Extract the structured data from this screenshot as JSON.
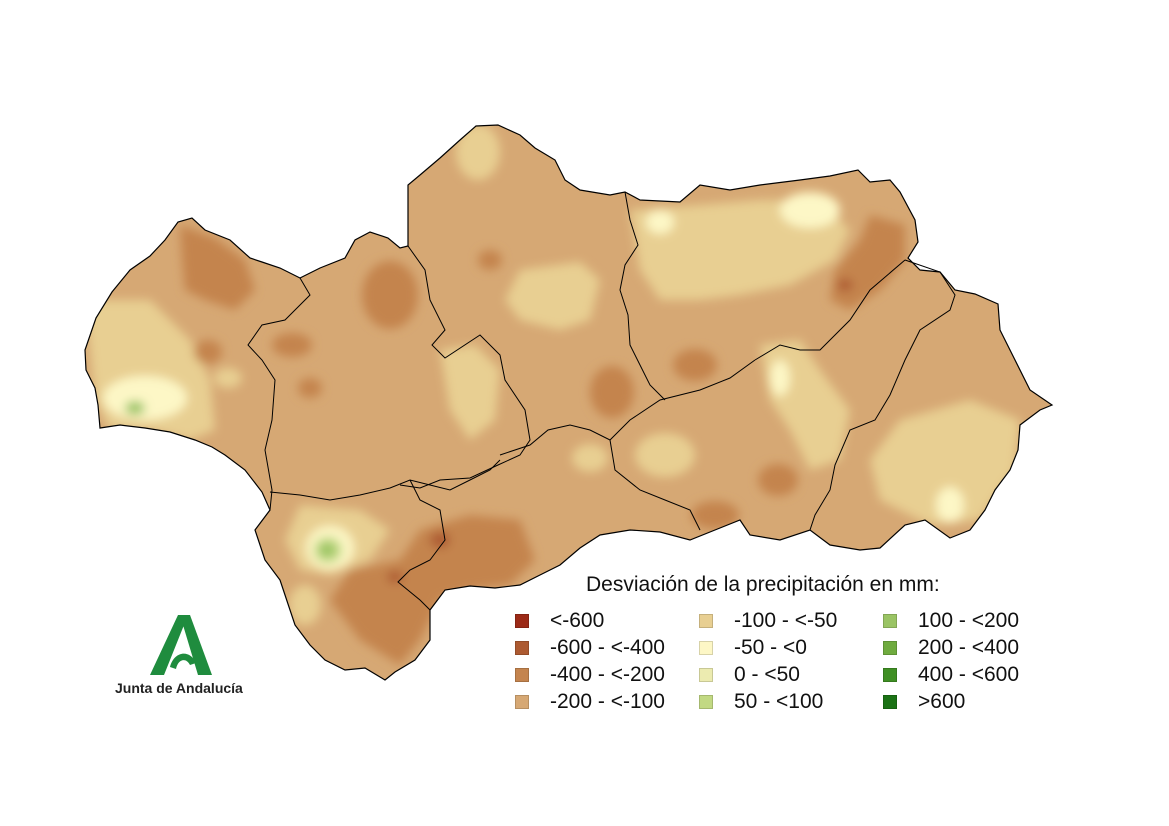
{
  "legend": {
    "title": "Desviación de la precipitación en mm:",
    "items": [
      {
        "label": "<-600",
        "color": "#9c2a17"
      },
      {
        "label": "-600 - <-400",
        "color": "#ad5a31"
      },
      {
        "label": "-400 - <-200",
        "color": "#c4844e"
      },
      {
        "label": "-200 - <-100",
        "color": "#d6a874"
      },
      {
        "label": "-100 - <-50",
        "color": "#e8cf92"
      },
      {
        "label": "-50 - <0",
        "color": "#fdf7c6"
      },
      {
        "label": "0 - <50",
        "color": "#ecebb0"
      },
      {
        "label": "50 - <100",
        "color": "#c2d983"
      },
      {
        "label": "100 - <200",
        "color": "#9ac464"
      },
      {
        "label": "200 - <400",
        "color": "#6fab3f"
      },
      {
        "label": "400 - <600",
        "color": "#3f8f24"
      },
      {
        "label": ">600",
        "color": "#1b7215"
      }
    ]
  },
  "logo": {
    "text": "Junta de Andalucía",
    "color": "#1f8c3e"
  }
}
